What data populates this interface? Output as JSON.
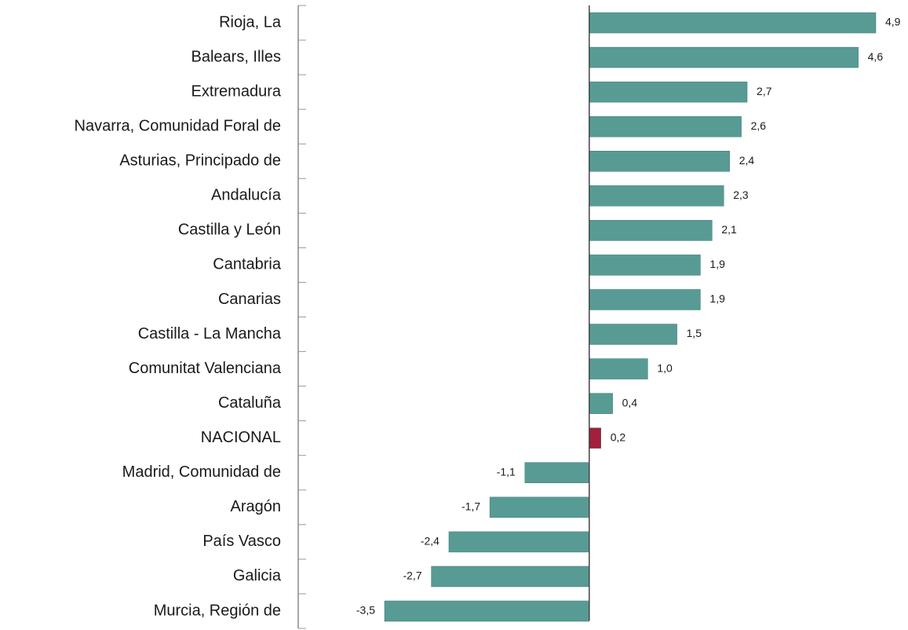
{
  "chart_data": {
    "type": "hbar",
    "categories": [
      "Rioja, La",
      "Balears, Illes",
      "Extremadura",
      "Navarra, Comunidad Foral de",
      "Asturias, Principado de",
      "Andalucía",
      "Castilla y León",
      "Cantabria",
      "Canarias",
      "Castilla - La Mancha",
      "Comunitat Valenciana",
      "Cataluña",
      "NACIONAL",
      "Madrid, Comunidad de",
      "Aragón",
      "País Vasco",
      "Galicia",
      "Murcia, Región de"
    ],
    "values": [
      4.9,
      4.6,
      2.7,
      2.6,
      2.4,
      2.3,
      2.1,
      1.9,
      1.9,
      1.5,
      1.0,
      0.4,
      0.2,
      -1.1,
      -1.7,
      -2.4,
      -2.7,
      -3.5
    ],
    "value_labels": [
      "4,9",
      "4,6",
      "2,7",
      "2,6",
      "2,4",
      "2,3",
      "2,1",
      "1,9",
      "1,9",
      "1,5",
      "1,0",
      "0,4",
      "0,2",
      "-1,1",
      "-1,7",
      "-2,4",
      "-2,7",
      "-3,5"
    ],
    "colors": [
      "#579b94",
      "#579b94",
      "#579b94",
      "#579b94",
      "#579b94",
      "#579b94",
      "#579b94",
      "#579b94",
      "#579b94",
      "#579b94",
      "#579b94",
      "#579b94",
      "#a31f3a",
      "#579b94",
      "#579b94",
      "#579b94",
      "#579b94",
      "#579b94"
    ]
  }
}
